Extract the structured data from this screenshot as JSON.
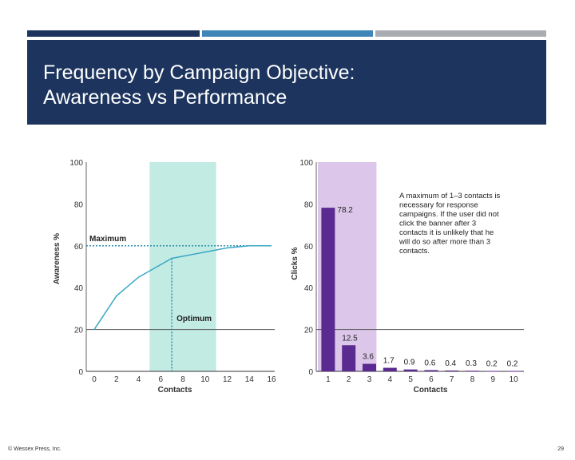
{
  "slide": {
    "title_line1": "Frequency by Campaign Objective:",
    "title_line2": "Awareness vs Performance",
    "footer_left": "© Wessex Press, Inc.",
    "page_number": "29",
    "colors": {
      "header": "#1d355e",
      "bar1": "#1d355e",
      "bar2": "#3e86b8",
      "bar3": "#a9adb1"
    }
  },
  "chart_data": [
    {
      "type": "line",
      "xlabel": "Contacts",
      "ylabel": "Awareness %",
      "xlim": [
        0,
        16
      ],
      "ylim": [
        0,
        100
      ],
      "xticks": [
        "0",
        "2",
        "4",
        "6",
        "8",
        "10",
        "12",
        "14",
        "16"
      ],
      "yticks": [
        "0",
        "20",
        "40",
        "60",
        "80",
        "100"
      ],
      "series": [
        {
          "x": [
            0,
            2,
            4,
            6,
            7,
            8,
            10,
            12,
            14,
            16
          ],
          "y": [
            20,
            36,
            45,
            51,
            54,
            55,
            57,
            59,
            60,
            60
          ]
        }
      ],
      "highlight_band": {
        "x_from": 5,
        "x_to": 11,
        "color": "#c2ebe3"
      },
      "maximum": {
        "label": "Maximum",
        "y": 60
      },
      "optimum": {
        "label": "Optimum",
        "x": 7,
        "y": 54
      },
      "line_color": "#3aa8c5",
      "guide_color": "#2a8fb0"
    },
    {
      "type": "bar",
      "xlabel": "Contacts",
      "ylabel": "Clicks %",
      "ylim": [
        0,
        100
      ],
      "yticks": [
        "0",
        "20",
        "40",
        "60",
        "80",
        "100"
      ],
      "categories": [
        "1",
        "2",
        "3",
        "4",
        "5",
        "6",
        "7",
        "8",
        "9",
        "10"
      ],
      "values": [
        78.2,
        12.5,
        3.6,
        1.7,
        0.9,
        0.6,
        0.4,
        0.3,
        0.2,
        0.2
      ],
      "labels": [
        "78.2",
        "12.5",
        "3.6",
        "1.7",
        "0.9",
        "0.6",
        "0.4",
        "0.3",
        "0.2",
        "0.2"
      ],
      "highlight_band": {
        "from_category": "1",
        "to_category": "3",
        "color": "#dcc7ea"
      },
      "bar_color": "#5b2a91",
      "annotation_lines": [
        "A maximum of 1–3 contacts is",
        "necessary for response",
        "campaigns. If the user did not",
        "click the banner after 3",
        "contacts it is unlikely that he",
        "will do so after more than 3",
        "contacts."
      ]
    }
  ]
}
